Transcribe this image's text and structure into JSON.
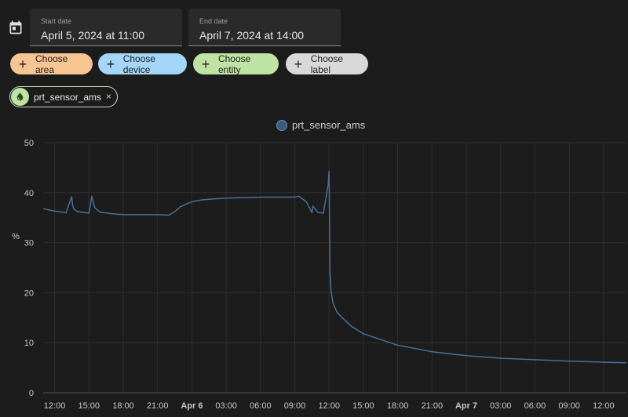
{
  "date_range": {
    "start_label": "Start date",
    "start_value": "April 5, 2024 at 11:00",
    "end_label": "End date",
    "end_value": "April 7, 2024 at 14:00"
  },
  "targets": {
    "area": "Choose area",
    "device": "Choose device",
    "entity": "Choose entity",
    "label": "Choose label",
    "plus_glyph": "+"
  },
  "selected_entity": {
    "name": "prt_sensor_ams",
    "remove_glyph": "×",
    "icon": "water-drop-icon"
  },
  "colors": {
    "series": "#4a6f97",
    "area_chip": "#f7c592",
    "device_chip": "#a3d6f7",
    "entity_chip": "#bfe3a4",
    "label_chip": "#d9d9d9"
  },
  "chart_data": {
    "type": "line",
    "title": "",
    "xlabel": "",
    "ylabel": "%",
    "ylim": [
      0,
      50
    ],
    "yticks": [
      0,
      10,
      20,
      30,
      40,
      50
    ],
    "grid": true,
    "legend": "top-center",
    "xticks": [
      "12:00",
      "15:00",
      "18:00",
      "21:00",
      "Apr 6",
      "03:00",
      "06:00",
      "09:00",
      "12:00",
      "15:00",
      "18:00",
      "21:00",
      "Apr 7",
      "03:00",
      "06:00",
      "09:00",
      "12:00"
    ],
    "xticks_bold": [
      "Apr 6",
      "Apr 7"
    ],
    "series": [
      {
        "name": "prt_sensor_ams",
        "x": [
          "2024-04-05 11:00",
          "2024-04-05 12:00",
          "2024-04-05 13:00",
          "2024-04-05 13:30",
          "2024-04-05 13:35",
          "2024-04-05 13:40",
          "2024-04-05 14:00",
          "2024-04-05 15:00",
          "2024-04-05 15:15",
          "2024-04-05 15:30",
          "2024-04-05 16:00",
          "2024-04-05 17:00",
          "2024-04-05 18:00",
          "2024-04-05 21:00",
          "2024-04-05 22:00",
          "2024-04-05 22:30",
          "2024-04-05 23:00",
          "2024-04-06 00:00",
          "2024-04-06 01:00",
          "2024-04-06 03:00",
          "2024-04-06 06:00",
          "2024-04-06 09:00",
          "2024-04-06 09:20",
          "2024-04-06 10:00",
          "2024-04-06 10:30",
          "2024-04-06 10:35",
          "2024-04-06 11:00",
          "2024-04-06 11:30",
          "2024-04-06 11:55",
          "2024-04-06 12:00",
          "2024-04-06 12:05",
          "2024-04-06 12:10",
          "2024-04-06 12:20",
          "2024-04-06 12:40",
          "2024-04-06 13:00",
          "2024-04-06 14:00",
          "2024-04-06 15:00",
          "2024-04-06 18:00",
          "2024-04-06 21:00",
          "2024-04-07 00:00",
          "2024-04-07 03:00",
          "2024-04-07 06:00",
          "2024-04-07 09:00",
          "2024-04-07 12:00",
          "2024-04-07 14:00"
        ],
        "y": [
          36.8,
          36.3,
          36.0,
          39.2,
          37.5,
          36.8,
          36.2,
          35.9,
          39.3,
          37.0,
          36.1,
          35.8,
          35.6,
          35.6,
          35.5,
          36.2,
          37.2,
          38.2,
          38.6,
          38.9,
          39.1,
          39.1,
          39.3,
          38.2,
          36.0,
          37.3,
          36.1,
          35.9,
          41.5,
          44.3,
          24.0,
          20.5,
          18.0,
          16.2,
          15.3,
          13.2,
          11.8,
          9.5,
          8.2,
          7.4,
          6.9,
          6.6,
          6.3,
          6.1,
          6.0
        ]
      }
    ]
  }
}
